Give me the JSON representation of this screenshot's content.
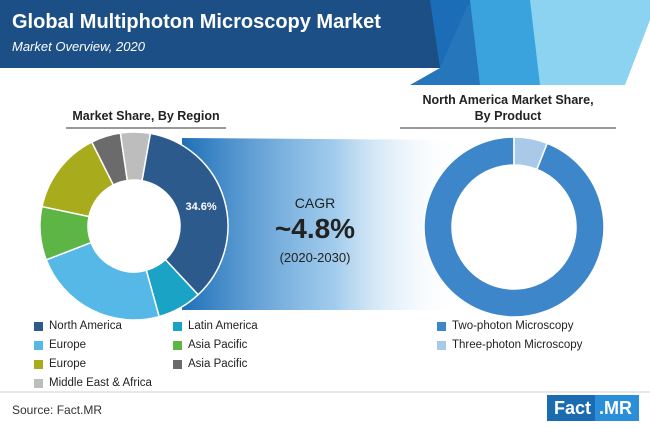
{
  "header": {
    "title": "Global Multiphoton Microscopy Market",
    "subtitle": "Market Overview, 2020"
  },
  "left_chart": {
    "title": "Market Share, By Region",
    "center_label": "34.6%"
  },
  "right_chart": {
    "title_line1": "North America Market Share,",
    "title_line2": "By Product"
  },
  "cagr": {
    "label": "CAGR",
    "value": "~4.8%",
    "period": "(2020-2030)"
  },
  "legend_left": [
    {
      "label": "North America",
      "color": "#2c5a8c"
    },
    {
      "label": "Latin America",
      "color": "#1ba3c6"
    },
    {
      "label": "Europe",
      "color": "#56b8e6"
    },
    {
      "label": "Asia Pacific",
      "color": "#5db546"
    },
    {
      "label": "Europe",
      "color": "#a8ab1c"
    },
    {
      "label": "Asia Pacific",
      "color": "#6b6b6b"
    },
    {
      "label": "Middle East & Africa",
      "color": "#bdbdbd"
    }
  ],
  "legend_right": [
    {
      "label": "Two-photon Microscopy",
      "color": "#3d86c9"
    },
    {
      "label": "Three-photon Microscopy",
      "color": "#a9c9e8"
    }
  ],
  "source": "Source: Fact.MR",
  "logo": {
    "part1": "Fact",
    "part2": ".MR"
  },
  "chart_data": [
    {
      "type": "pie",
      "title": "Market Share, By Region",
      "categories": [
        "North America",
        "Latin America",
        "Europe",
        "Asia Pacific",
        "Europe",
        "Asia Pacific",
        "Middle East & Africa"
      ],
      "values": [
        34.6,
        7.5,
        23.0,
        9.0,
        14.0,
        5.0,
        5.0
      ],
      "colors": [
        "#2c5a8c",
        "#1ba3c6",
        "#56b8e6",
        "#5db546",
        "#a8ab1c",
        "#6b6b6b",
        "#bdbdbd"
      ],
      "data_labels": [
        "34.6%",
        "",
        "",
        "",
        "",
        "",
        ""
      ]
    },
    {
      "type": "pie",
      "title": "North America Market Share, By Product",
      "categories": [
        "Two-photon Microscopy",
        "Three-photon Microscopy"
      ],
      "values": [
        94.0,
        6.0
      ],
      "colors": [
        "#3d86c9",
        "#a9c9e8"
      ]
    }
  ]
}
